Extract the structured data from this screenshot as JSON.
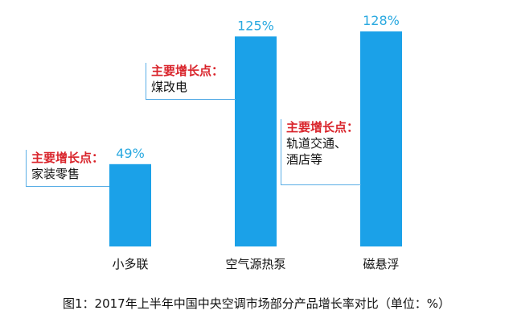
{
  "chart_data": {
    "type": "bar",
    "categories": [
      "小多联",
      "空气源热泵",
      "磁悬浮"
    ],
    "values": [
      49,
      125,
      128
    ],
    "value_labels": [
      "49%",
      "125%",
      "128%"
    ],
    "ylim": [
      0,
      140
    ],
    "grid": false,
    "bar_color": "#1ba1e8",
    "value_label_color": "#2aa9e0",
    "annotations": [
      {
        "category": "小多联",
        "head": "主要增长点：",
        "lines": [
          "家装零售"
        ]
      },
      {
        "category": "空气源热泵",
        "head": "主要增长点：",
        "lines": [
          "煤改电"
        ]
      },
      {
        "category": "磁悬浮",
        "head": "主要增长点：",
        "lines": [
          "轨道交通、",
          "酒店等"
        ]
      }
    ]
  },
  "caption": "图1：2017年上半年中国中央空调市场部分产品增长率对比（单位：%）",
  "colors": {
    "annotation_head": "#d9232a",
    "annotation_line": "#5aaee6"
  }
}
